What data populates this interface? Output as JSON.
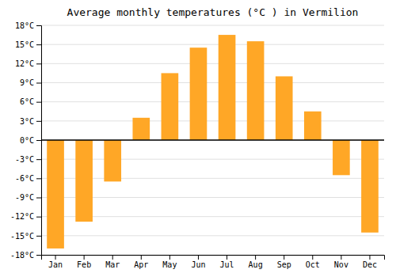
{
  "chart_data": {
    "type": "bar",
    "title": "Average monthly temperatures (°C ) in Vermilion",
    "categories": [
      "Jan",
      "Feb",
      "Mar",
      "Apr",
      "May",
      "Jun",
      "Jul",
      "Aug",
      "Sep",
      "Oct",
      "Nov",
      "Dec"
    ],
    "values": [
      -17.0,
      -12.8,
      -6.5,
      3.5,
      10.5,
      14.5,
      16.5,
      15.5,
      10.0,
      4.5,
      -5.5,
      -14.5
    ],
    "color": "#FFA726",
    "ylim": [
      -18,
      18
    ],
    "yticks": [
      {
        "value": -18,
        "label": "-18°C"
      },
      {
        "value": -15,
        "label": "-15°C"
      },
      {
        "value": -12,
        "label": "-12°C"
      },
      {
        "value": -9,
        "label": "-9°C"
      },
      {
        "value": -6,
        "label": "-6°C"
      },
      {
        "value": -3,
        "label": "-3°C"
      },
      {
        "value": 0,
        "label": "0°C"
      },
      {
        "value": 3,
        "label": "3°C"
      },
      {
        "value": 6,
        "label": "6°C"
      },
      {
        "value": 9,
        "label": "9°C"
      },
      {
        "value": 12,
        "label": "12°C"
      },
      {
        "value": 15,
        "label": "15°C"
      },
      {
        "value": 18,
        "label": "18°C"
      }
    ],
    "grid": true
  }
}
